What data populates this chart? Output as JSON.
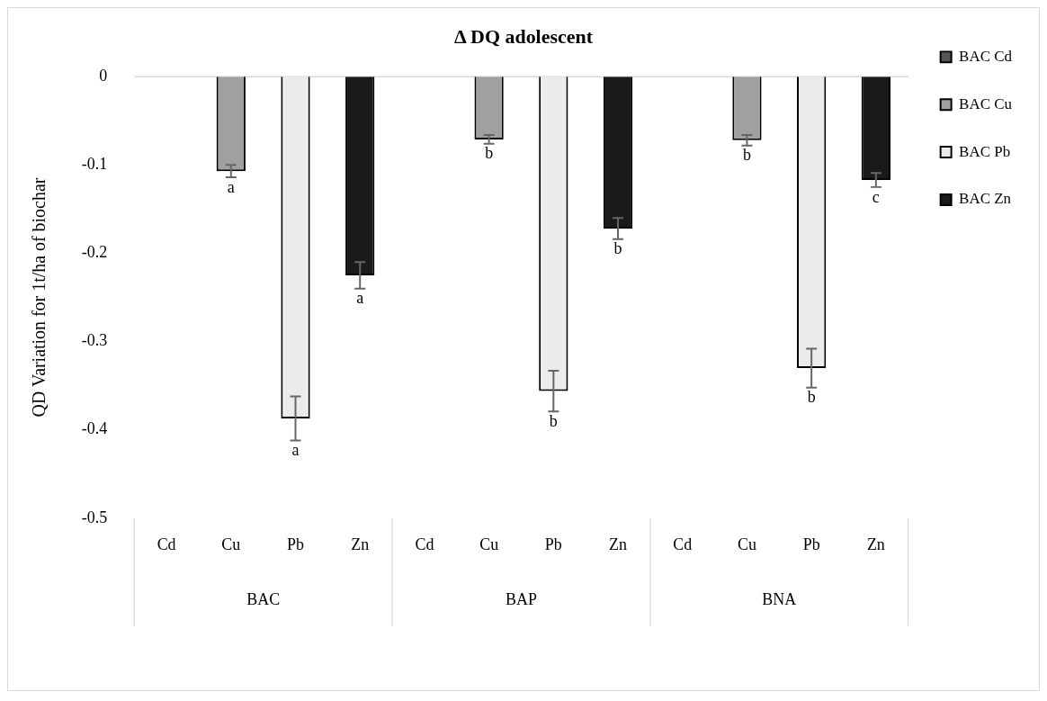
{
  "chart_data": {
    "type": "bar",
    "title": "Δ DQ adolescent",
    "ylabel": "QD Variation for 1t/ha of biochar",
    "categories": [
      "Cd",
      "Cu",
      "Pb",
      "Zn",
      "Cd",
      "Cu",
      "Pb",
      "Zn",
      "Cd",
      "Cu",
      "Pb",
      "Zn"
    ],
    "series": [
      {
        "name": "BAC Cd",
        "color": "#555555",
        "values": [
          0,
          null,
          null,
          null,
          0,
          null,
          null,
          null,
          0,
          null,
          null,
          null
        ]
      },
      {
        "name": "BAC Cu",
        "color": "#a0a0a0",
        "values": [
          null,
          -0.107,
          null,
          null,
          null,
          -0.071,
          null,
          null,
          null,
          -0.072,
          null,
          null
        ],
        "errors": [
          null,
          0.007,
          null,
          null,
          null,
          0.005,
          null,
          null,
          null,
          0.006,
          null,
          null
        ],
        "value_labels": [
          null,
          "a",
          null,
          null,
          null,
          "b",
          null,
          null,
          null,
          "b",
          null,
          null
        ]
      },
      {
        "name": "BAC Pb",
        "color": "#ebebeb",
        "values": [
          null,
          null,
          -0.387,
          null,
          null,
          null,
          -0.356,
          null,
          null,
          null,
          -0.33,
          null
        ],
        "errors": [
          null,
          null,
          0.025,
          null,
          null,
          null,
          0.023,
          null,
          null,
          null,
          0.022,
          null
        ],
        "value_labels": [
          null,
          null,
          "a",
          null,
          null,
          null,
          "b",
          null,
          null,
          null,
          "b",
          null
        ]
      },
      {
        "name": "BAC Zn",
        "color": "#1a1a1a",
        "values": [
          null,
          null,
          null,
          -0.225,
          null,
          null,
          null,
          -0.172,
          null,
          null,
          null,
          -0.117
        ],
        "errors": [
          null,
          null,
          null,
          0.015,
          null,
          null,
          null,
          0.012,
          null,
          null,
          null,
          0.008
        ],
        "value_labels": [
          null,
          null,
          null,
          "a",
          null,
          null,
          null,
          "b",
          null,
          null,
          null,
          "c"
        ]
      }
    ],
    "ylim": [
      -0.5,
      0
    ],
    "yticks": [
      -0.5,
      -0.4,
      -0.3,
      -0.2,
      -0.1,
      0
    ],
    "grid": false,
    "legend": "right",
    "annotations": [
      "BAC",
      "BAP",
      "BNA"
    ]
  }
}
